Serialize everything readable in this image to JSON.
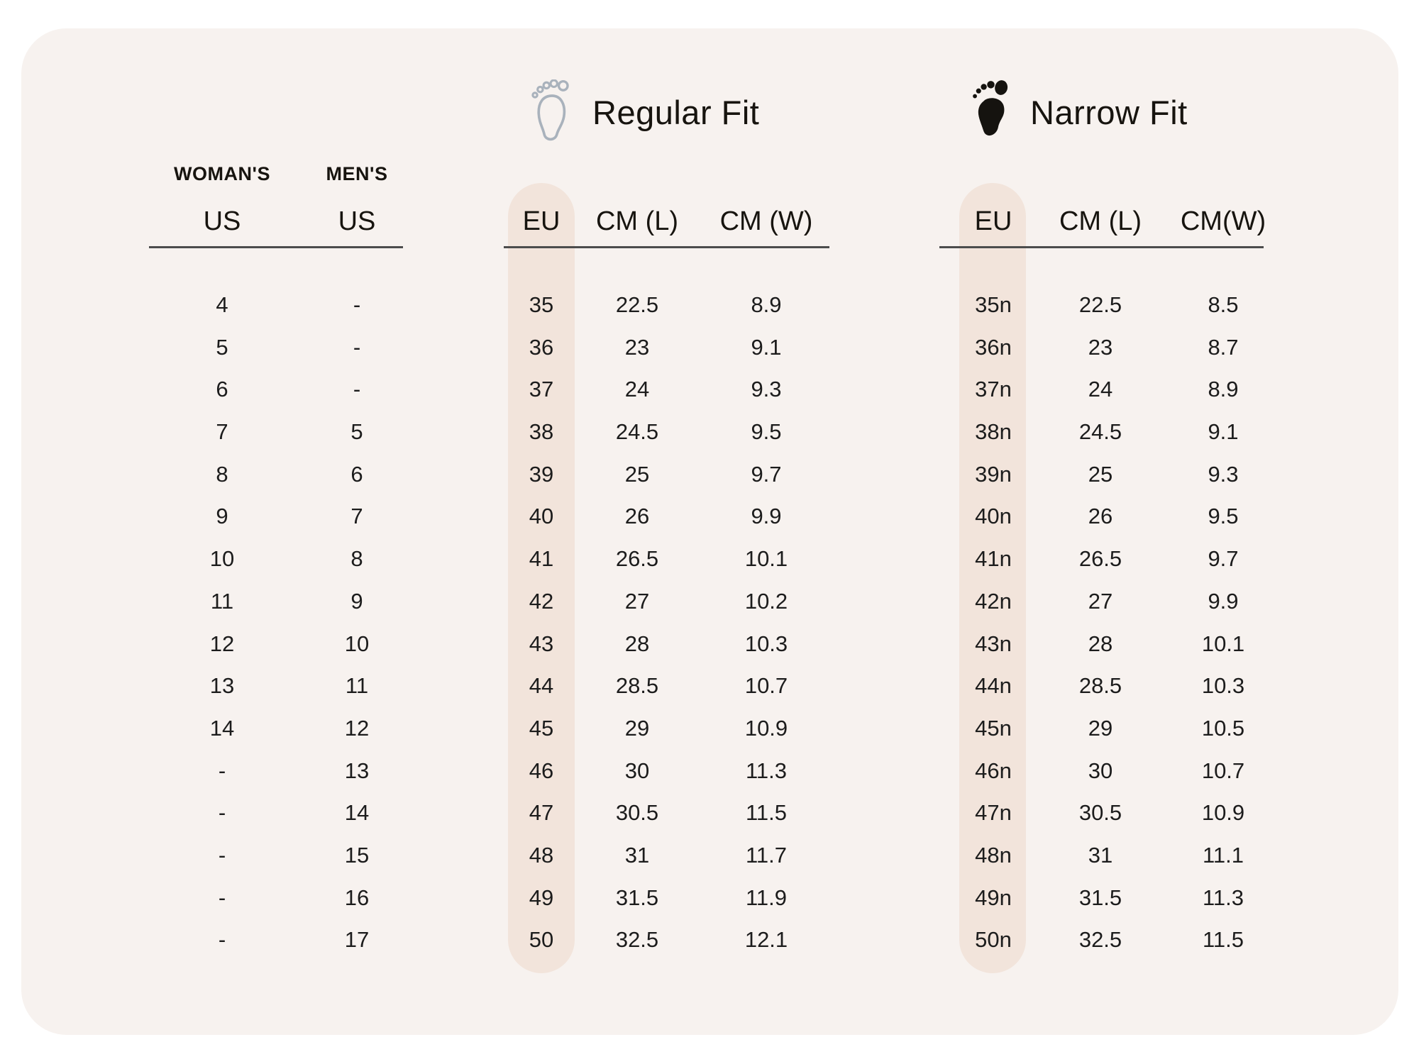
{
  "us_section": {
    "womens_label": "WOMAN'S",
    "mens_label": "MEN'S",
    "womens_unit": "US",
    "mens_unit": "US"
  },
  "regular_fit": {
    "title": "Regular Fit",
    "icon": "footprint-outline-icon",
    "headers": {
      "eu": "EU",
      "cm_l": "CM (L)",
      "cm_w": "CM (W)"
    }
  },
  "narrow_fit": {
    "title": "Narrow Fit",
    "icon": "footprint-solid-icon",
    "headers": {
      "eu": "EU",
      "cm_l": "CM (L)",
      "cm_w": "CM(W)"
    }
  },
  "colors": {
    "card_bg": "#f7f2ef",
    "pill_bg": "#f2e4db",
    "text": "#17140f",
    "underline": "#4c4c4c",
    "outline_icon": "#a9b2bc",
    "solid_icon": "#15130f"
  },
  "rows": [
    {
      "womens_us": "4",
      "mens_us": "-",
      "reg_eu": "35",
      "reg_cm_l": "22.5",
      "reg_cm_w": "8.9",
      "nar_eu": "35n",
      "nar_cm_l": "22.5",
      "nar_cm_w": "8.5"
    },
    {
      "womens_us": "5",
      "mens_us": "-",
      "reg_eu": "36",
      "reg_cm_l": "23",
      "reg_cm_w": "9.1",
      "nar_eu": "36n",
      "nar_cm_l": "23",
      "nar_cm_w": "8.7"
    },
    {
      "womens_us": "6",
      "mens_us": "-",
      "reg_eu": "37",
      "reg_cm_l": "24",
      "reg_cm_w": "9.3",
      "nar_eu": "37n",
      "nar_cm_l": "24",
      "nar_cm_w": "8.9"
    },
    {
      "womens_us": "7",
      "mens_us": "5",
      "reg_eu": "38",
      "reg_cm_l": "24.5",
      "reg_cm_w": "9.5",
      "nar_eu": "38n",
      "nar_cm_l": "24.5",
      "nar_cm_w": "9.1"
    },
    {
      "womens_us": "8",
      "mens_us": "6",
      "reg_eu": "39",
      "reg_cm_l": "25",
      "reg_cm_w": "9.7",
      "nar_eu": "39n",
      "nar_cm_l": "25",
      "nar_cm_w": "9.3"
    },
    {
      "womens_us": "9",
      "mens_us": "7",
      "reg_eu": "40",
      "reg_cm_l": "26",
      "reg_cm_w": "9.9",
      "nar_eu": "40n",
      "nar_cm_l": "26",
      "nar_cm_w": "9.5"
    },
    {
      "womens_us": "10",
      "mens_us": "8",
      "reg_eu": "41",
      "reg_cm_l": "26.5",
      "reg_cm_w": "10.1",
      "nar_eu": "41n",
      "nar_cm_l": "26.5",
      "nar_cm_w": "9.7"
    },
    {
      "womens_us": "11",
      "mens_us": "9",
      "reg_eu": "42",
      "reg_cm_l": "27",
      "reg_cm_w": "10.2",
      "nar_eu": "42n",
      "nar_cm_l": "27",
      "nar_cm_w": "9.9"
    },
    {
      "womens_us": "12",
      "mens_us": "10",
      "reg_eu": "43",
      "reg_cm_l": "28",
      "reg_cm_w": "10.3",
      "nar_eu": "43n",
      "nar_cm_l": "28",
      "nar_cm_w": "10.1"
    },
    {
      "womens_us": "13",
      "mens_us": "11",
      "reg_eu": "44",
      "reg_cm_l": "28.5",
      "reg_cm_w": "10.7",
      "nar_eu": "44n",
      "nar_cm_l": "28.5",
      "nar_cm_w": "10.3"
    },
    {
      "womens_us": "14",
      "mens_us": "12",
      "reg_eu": "45",
      "reg_cm_l": "29",
      "reg_cm_w": "10.9",
      "nar_eu": "45n",
      "nar_cm_l": "29",
      "nar_cm_w": "10.5"
    },
    {
      "womens_us": "-",
      "mens_us": "13",
      "reg_eu": "46",
      "reg_cm_l": "30",
      "reg_cm_w": "11.3",
      "nar_eu": "46n",
      "nar_cm_l": "30",
      "nar_cm_w": "10.7"
    },
    {
      "womens_us": "-",
      "mens_us": "14",
      "reg_eu": "47",
      "reg_cm_l": "30.5",
      "reg_cm_w": "11.5",
      "nar_eu": "47n",
      "nar_cm_l": "30.5",
      "nar_cm_w": "10.9"
    },
    {
      "womens_us": "-",
      "mens_us": "15",
      "reg_eu": "48",
      "reg_cm_l": "31",
      "reg_cm_w": "11.7",
      "nar_eu": "48n",
      "nar_cm_l": "31",
      "nar_cm_w": "11.1"
    },
    {
      "womens_us": "-",
      "mens_us": "16",
      "reg_eu": "49",
      "reg_cm_l": "31.5",
      "reg_cm_w": "11.9",
      "nar_eu": "49n",
      "nar_cm_l": "31.5",
      "nar_cm_w": "11.3"
    },
    {
      "womens_us": "-",
      "mens_us": "17",
      "reg_eu": "50",
      "reg_cm_l": "32.5",
      "reg_cm_w": "12.1",
      "nar_eu": "50n",
      "nar_cm_l": "32.5",
      "nar_cm_w": "11.5"
    }
  ],
  "chart_data": {
    "type": "table",
    "columns": [
      "WOMAN'S US",
      "MEN'S US",
      "Regular Fit EU",
      "Regular Fit CM (L)",
      "Regular Fit CM (W)",
      "Narrow Fit EU",
      "Narrow Fit CM (L)",
      "Narrow Fit CM(W)"
    ],
    "rows": [
      [
        "4",
        "-",
        "35",
        "22.5",
        "8.9",
        "35n",
        "22.5",
        "8.5"
      ],
      [
        "5",
        "-",
        "36",
        "23",
        "9.1",
        "36n",
        "23",
        "8.7"
      ],
      [
        "6",
        "-",
        "37",
        "24",
        "9.3",
        "37n",
        "24",
        "8.9"
      ],
      [
        "7",
        "5",
        "38",
        "24.5",
        "9.5",
        "38n",
        "24.5",
        "9.1"
      ],
      [
        "8",
        "6",
        "39",
        "25",
        "9.7",
        "39n",
        "25",
        "9.3"
      ],
      [
        "9",
        "7",
        "40",
        "26",
        "9.9",
        "40n",
        "26",
        "9.5"
      ],
      [
        "10",
        "8",
        "41",
        "26.5",
        "10.1",
        "41n",
        "26.5",
        "9.7"
      ],
      [
        "11",
        "9",
        "42",
        "27",
        "10.2",
        "42n",
        "27",
        "9.9"
      ],
      [
        "12",
        "10",
        "43",
        "28",
        "10.3",
        "43n",
        "28",
        "10.1"
      ],
      [
        "13",
        "11",
        "44",
        "28.5",
        "10.7",
        "44n",
        "28.5",
        "10.3"
      ],
      [
        "14",
        "12",
        "45",
        "29",
        "10.9",
        "45n",
        "29",
        "10.5"
      ],
      [
        "-",
        "13",
        "46",
        "30",
        "11.3",
        "46n",
        "30",
        "10.7"
      ],
      [
        "-",
        "14",
        "47",
        "30.5",
        "11.5",
        "47n",
        "30.5",
        "10.9"
      ],
      [
        "-",
        "15",
        "48",
        "31",
        "11.7",
        "48n",
        "31",
        "11.1"
      ],
      [
        "-",
        "16",
        "49",
        "31.5",
        "11.9",
        "49n",
        "31.5",
        "11.3"
      ],
      [
        "-",
        "17",
        "50",
        "32.5",
        "12.1",
        "50n",
        "32.5",
        "11.5"
      ]
    ]
  }
}
